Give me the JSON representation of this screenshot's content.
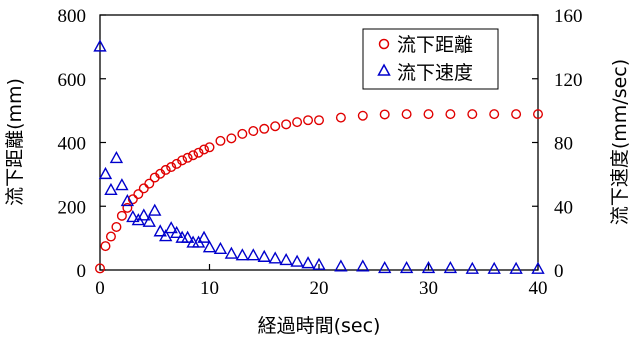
{
  "chart_data": {
    "type": "scatter",
    "xlabel": "経過時間(sec)",
    "ylabel_left": "流下距離(mm)",
    "ylabel_right": "流下速度(mm/sec)",
    "xlim": [
      0,
      40
    ],
    "ylim_left": [
      0,
      800
    ],
    "ylim_right": [
      0,
      160
    ],
    "x_ticks": [
      "0",
      "10",
      "20",
      "30",
      "40"
    ],
    "y_left_ticks": [
      "0",
      "200",
      "400",
      "600",
      "800"
    ],
    "y_right_ticks": [
      "0",
      "40",
      "80",
      "120",
      "160"
    ],
    "grid": false,
    "legend_position": "top-right",
    "series": [
      {
        "name": "流下距離",
        "axis": "left",
        "marker": "circle",
        "color": "#e00000",
        "points": [
          [
            0,
            5
          ],
          [
            0.5,
            75
          ],
          [
            1,
            105
          ],
          [
            1.5,
            135
          ],
          [
            2,
            170
          ],
          [
            2.5,
            195
          ],
          [
            3,
            222
          ],
          [
            3.5,
            238
          ],
          [
            4,
            256
          ],
          [
            4.5,
            271
          ],
          [
            5,
            290
          ],
          [
            5.5,
            302
          ],
          [
            6,
            314
          ],
          [
            6.5,
            323
          ],
          [
            7,
            333
          ],
          [
            7.5,
            344
          ],
          [
            8,
            352
          ],
          [
            8.5,
            360
          ],
          [
            9,
            368
          ],
          [
            9.5,
            378
          ],
          [
            10,
            385
          ],
          [
            11,
            405
          ],
          [
            12,
            413
          ],
          [
            13,
            427
          ],
          [
            14,
            436
          ],
          [
            15,
            443
          ],
          [
            16,
            451
          ],
          [
            17,
            457
          ],
          [
            18,
            464
          ],
          [
            19,
            470
          ],
          [
            20,
            470
          ],
          [
            22,
            478
          ],
          [
            24,
            484
          ],
          [
            26,
            488
          ],
          [
            28,
            489
          ],
          [
            30,
            489
          ],
          [
            32,
            489
          ],
          [
            34,
            489
          ],
          [
            36,
            489
          ],
          [
            38,
            489
          ],
          [
            40,
            489
          ]
        ]
      },
      {
        "name": "流下速度",
        "axis": "right",
        "marker": "triangle",
        "color": "#0000cc",
        "points": [
          [
            0,
            140
          ],
          [
            0.5,
            60
          ],
          [
            1,
            50
          ],
          [
            1.5,
            70
          ],
          [
            2,
            53
          ],
          [
            2.5,
            43
          ],
          [
            3,
            33
          ],
          [
            3.5,
            31
          ],
          [
            4,
            34
          ],
          [
            4.5,
            30
          ],
          [
            5,
            37
          ],
          [
            5.5,
            24
          ],
          [
            6,
            21
          ],
          [
            6.5,
            26
          ],
          [
            7,
            23
          ],
          [
            7.5,
            20
          ],
          [
            8,
            20
          ],
          [
            8.5,
            17
          ],
          [
            9,
            17
          ],
          [
            9.5,
            20
          ],
          [
            10,
            14
          ],
          [
            11,
            13
          ],
          [
            12,
            10
          ],
          [
            13,
            9
          ],
          [
            14,
            9
          ],
          [
            15,
            8
          ],
          [
            16,
            7
          ],
          [
            17,
            6
          ],
          [
            18,
            5
          ],
          [
            19,
            4
          ],
          [
            20,
            3
          ],
          [
            22,
            2
          ],
          [
            24,
            2
          ],
          [
            26,
            1
          ],
          [
            28,
            1
          ],
          [
            30,
            1
          ],
          [
            32,
            1
          ],
          [
            34,
            0.5
          ],
          [
            36,
            0.5
          ],
          [
            38,
            0.5
          ],
          [
            40,
            0.5
          ]
        ]
      }
    ]
  }
}
